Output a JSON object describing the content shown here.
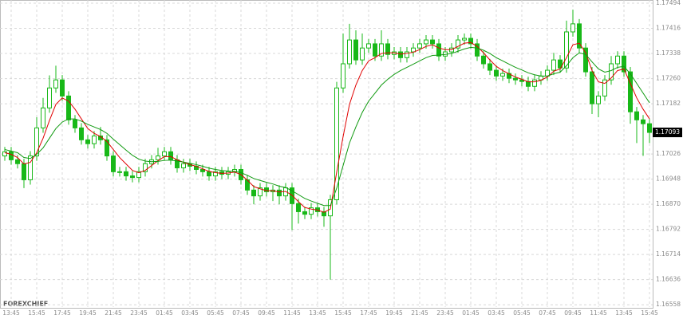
{
  "chart_data": {
    "type": "candlestick",
    "brand": "FOREXCHIEF",
    "ylim": [
      1.16551,
      1.17504
    ],
    "yticks": [
      1.17494,
      1.17416,
      1.17338,
      {
        "value": 1.1726,
        "label": "1.17260"
      },
      1.17182,
      1.17026,
      1.16948,
      {
        "value": 1.1687,
        "label": "1.16870"
      },
      1.16792,
      1.16714,
      1.16636,
      1.16558
    ],
    "current_price": 1.17093,
    "grid": true,
    "up_color": "#18b818",
    "down_color": "#18b818",
    "xticks": [
      {
        "value": 1,
        "label": "13:45"
      },
      {
        "value": 5,
        "label": "15:45"
      },
      {
        "value": 9,
        "label": "17:45"
      },
      {
        "value": 13,
        "label": "19:45"
      },
      {
        "value": 17,
        "label": "21:45"
      },
      {
        "value": 21,
        "label": "23:45"
      },
      {
        "value": 25,
        "label": "01:45"
      },
      {
        "value": 29,
        "label": "03:45"
      },
      {
        "value": 33,
        "label": "05:45"
      },
      {
        "value": 37,
        "label": "07:45"
      },
      {
        "value": 41,
        "label": "09:45"
      },
      {
        "value": 45,
        "label": "11:45"
      },
      {
        "value": 49,
        "label": "13:45"
      },
      {
        "value": 53,
        "label": "15:45"
      },
      {
        "value": 57,
        "label": "17:45"
      },
      {
        "value": 61,
        "label": "19:45"
      },
      {
        "value": 65,
        "label": "21:45"
      },
      {
        "value": 69,
        "label": "23:45"
      },
      {
        "value": 73,
        "label": "01:45"
      },
      {
        "value": 77,
        "label": "03:45"
      },
      {
        "value": 81,
        "label": "05:45"
      },
      {
        "value": 85,
        "label": "07:45"
      },
      {
        "value": 89,
        "label": "09:45"
      },
      {
        "value": 93,
        "label": "11:45"
      },
      {
        "value": 97,
        "label": "13:45"
      },
      {
        "value": 101,
        "label": "15:45"
      }
    ],
    "candles": [
      [
        1.1702,
        1.17048,
        1.17005,
        1.17033
      ],
      [
        1.17033,
        1.17048,
        1.16993,
        1.17008
      ],
      [
        1.17008,
        1.17023,
        1.16981,
        1.16996
      ],
      [
        1.16996,
        1.17011,
        1.1692,
        1.16946
      ],
      [
        1.16946,
        1.17035,
        1.16931,
        1.1702
      ],
      [
        1.1702,
        1.1714,
        1.17005,
        1.17107
      ],
      [
        1.17107,
        1.172,
        1.17092,
        1.17169
      ],
      [
        1.17169,
        1.1727,
        1.17154,
        1.17231
      ],
      [
        1.17231,
        1.173,
        1.17216,
        1.17256
      ],
      [
        1.17256,
        1.17271,
        1.17191,
        1.17206
      ],
      [
        1.17206,
        1.17221,
        1.17117,
        1.17132
      ],
      [
        1.17132,
        1.17147,
        1.17092,
        1.17107
      ],
      [
        1.17107,
        1.17122,
        1.17055,
        1.1707
      ],
      [
        1.1707,
        1.17085,
        1.17043,
        1.17058
      ],
      [
        1.17058,
        1.17097,
        1.17043,
        1.17082
      ],
      [
        1.17082,
        1.1711,
        1.17055,
        1.1707
      ],
      [
        1.1707,
        1.17085,
        1.17005,
        1.1702
      ],
      [
        1.1702,
        1.17035,
        1.16956,
        1.16971
      ],
      [
        1.16971,
        1.16986,
        1.16956,
        1.16971
      ],
      [
        1.16971,
        1.16986,
        1.16943,
        1.16958
      ],
      [
        1.16958,
        1.16973,
        1.16938,
        1.16953
      ],
      [
        1.16953,
        1.16986,
        1.16938,
        1.16971
      ],
      [
        1.16971,
        1.17011,
        1.16956,
        1.16996
      ],
      [
        1.16996,
        1.17023,
        1.16981,
        1.17008
      ],
      [
        1.17008,
        1.17045,
        1.16993,
        1.1702
      ],
      [
        1.1702,
        1.17048,
        1.17005,
        1.17033
      ],
      [
        1.17033,
        1.17048,
        1.16993,
        1.17008
      ],
      [
        1.17008,
        1.17023,
        1.16968,
        1.16983
      ],
      [
        1.16983,
        1.17011,
        1.16968,
        1.16996
      ],
      [
        1.16996,
        1.17011,
        1.16973,
        1.16988
      ],
      [
        1.16988,
        1.17003,
        1.16963,
        1.16978
      ],
      [
        1.16978,
        1.16993,
        1.16956,
        1.16971
      ],
      [
        1.16971,
        1.16986,
        1.16943,
        1.16958
      ],
      [
        1.16958,
        1.16986,
        1.16943,
        1.16971
      ],
      [
        1.16971,
        1.16986,
        1.16948,
        1.16963
      ],
      [
        1.16963,
        1.16986,
        1.16948,
        1.16971
      ],
      [
        1.16971,
        1.16993,
        1.16956,
        1.16978
      ],
      [
        1.16978,
        1.16993,
        1.16931,
        1.16946
      ],
      [
        1.16946,
        1.16961,
        1.16899,
        1.16914
      ],
      [
        1.16914,
        1.16929,
        1.1687,
        1.16896
      ],
      [
        1.16896,
        1.16936,
        1.16881,
        1.16921
      ],
      [
        1.16921,
        1.16936,
        1.16894,
        1.16909
      ],
      [
        1.16909,
        1.16929,
        1.1688,
        1.16914
      ],
      [
        1.16914,
        1.16929,
        1.1687,
        1.16896
      ],
      [
        1.16896,
        1.16936,
        1.16881,
        1.16921
      ],
      [
        1.16921,
        1.16936,
        1.1679,
        1.16872
      ],
      [
        1.16872,
        1.16887,
        1.1681,
        1.16847
      ],
      [
        1.16847,
        1.16862,
        1.16824,
        1.16839
      ],
      [
        1.16839,
        1.16874,
        1.16824,
        1.16859
      ],
      [
        1.16859,
        1.16874,
        1.16832,
        1.16847
      ],
      [
        1.16847,
        1.16862,
        1.168,
        1.16834
      ],
      [
        1.16834,
        1.16899,
        1.16636,
        1.16884
      ],
      [
        1.16884,
        1.1725,
        1.16869,
        1.17231
      ],
      [
        1.17231,
        1.174,
        1.17216,
        1.17306
      ],
      [
        1.17306,
        1.1743,
        1.17291,
        1.1738
      ],
      [
        1.1738,
        1.1741,
        1.17303,
        1.17318
      ],
      [
        1.17318,
        1.174,
        1.17303,
        1.17355
      ],
      [
        1.17355,
        1.17383,
        1.1734,
        1.17368
      ],
      [
        1.17368,
        1.17383,
        1.17315,
        1.1733
      ],
      [
        1.1733,
        1.1741,
        1.17315,
        1.17368
      ],
      [
        1.17368,
        1.17383,
        1.1732,
        1.17335
      ],
      [
        1.17335,
        1.17358,
        1.1732,
        1.17343
      ],
      [
        1.17343,
        1.17358,
        1.1731,
        1.17325
      ],
      [
        1.17325,
        1.17358,
        1.1731,
        1.17343
      ],
      [
        1.17343,
        1.1737,
        1.17328,
        1.17355
      ],
      [
        1.17355,
        1.17383,
        1.1734,
        1.17368
      ],
      [
        1.17368,
        1.17395,
        1.17353,
        1.1738
      ],
      [
        1.1738,
        1.17395,
        1.17353,
        1.17368
      ],
      [
        1.17368,
        1.17383,
        1.17315,
        1.1733
      ],
      [
        1.1733,
        1.17358,
        1.17315,
        1.17343
      ],
      [
        1.17343,
        1.1737,
        1.17328,
        1.17355
      ],
      [
        1.17355,
        1.17395,
        1.1734,
        1.1738
      ],
      [
        1.1738,
        1.174,
        1.17365,
        1.17385
      ],
      [
        1.17385,
        1.174,
        1.17353,
        1.17368
      ],
      [
        1.17368,
        1.17383,
        1.17315,
        1.1733
      ],
      [
        1.1733,
        1.17345,
        1.17291,
        1.17306
      ],
      [
        1.17306,
        1.17321,
        1.17271,
        1.17286
      ],
      [
        1.17286,
        1.17301,
        1.17253,
        1.17268
      ],
      [
        1.17268,
        1.17291,
        1.17253,
        1.17276
      ],
      [
        1.17276,
        1.17291,
        1.17246,
        1.17261
      ],
      [
        1.17261,
        1.17276,
        1.17241,
        1.17256
      ],
      [
        1.17256,
        1.17271,
        1.17236,
        1.17251
      ],
      [
        1.17251,
        1.17266,
        1.17221,
        1.17236
      ],
      [
        1.17236,
        1.17271,
        1.17221,
        1.17256
      ],
      [
        1.17256,
        1.17283,
        1.17241,
        1.17268
      ],
      [
        1.17268,
        1.17301,
        1.17253,
        1.17286
      ],
      [
        1.17286,
        1.1734,
        1.17271,
        1.17318
      ],
      [
        1.17318,
        1.17333,
        1.17278,
        1.17293
      ],
      [
        1.17293,
        1.1744,
        1.17278,
        1.17405
      ],
      [
        1.17405,
        1.17474,
        1.1739,
        1.1743
      ],
      [
        1.1743,
        1.17445,
        1.1734,
        1.17355
      ],
      [
        1.17355,
        1.1737,
        1.17266,
        1.17281
      ],
      [
        1.17281,
        1.17296,
        1.1715,
        1.17182
      ],
      [
        1.17182,
        1.17221,
        1.1714,
        1.17206
      ],
      [
        1.17206,
        1.17271,
        1.17191,
        1.17256
      ],
      [
        1.17256,
        1.1733,
        1.17241,
        1.17306
      ],
      [
        1.17306,
        1.17345,
        1.17291,
        1.1733
      ],
      [
        1.1733,
        1.17345,
        1.17266,
        1.17281
      ],
      [
        1.17281,
        1.17296,
        1.1712,
        1.17157
      ],
      [
        1.17157,
        1.17172,
        1.1706,
        1.17132
      ],
      [
        1.17132,
        1.17147,
        1.1702,
        1.1712
      ],
      [
        1.1712,
        1.17135,
        1.1706,
        1.17093
      ]
    ],
    "series": [
      {
        "color": "#e00000",
        "values": [
          1.1703,
          1.17025,
          1.17015,
          1.16995,
          1.17,
          1.1703,
          1.17075,
          1.1713,
          1.1718,
          1.172,
          1.1719,
          1.17165,
          1.17135,
          1.17105,
          1.1709,
          1.1708,
          1.17065,
          1.1704,
          1.17015,
          1.16995,
          1.16975,
          1.16968,
          1.16975,
          1.1699,
          1.17005,
          1.17018,
          1.17018,
          1.17008,
          1.17,
          1.16993,
          1.16988,
          1.1698,
          1.16972,
          1.16968,
          1.16966,
          1.16967,
          1.1697,
          1.16962,
          1.16945,
          1.16925,
          1.16918,
          1.16912,
          1.16912,
          1.16908,
          1.1691,
          1.16898,
          1.16878,
          1.1686,
          1.16855,
          1.16852,
          1.16845,
          1.16855,
          1.1697,
          1.1708,
          1.1718,
          1.1724,
          1.17285,
          1.17315,
          1.17325,
          1.17338,
          1.1734,
          1.1734,
          1.17336,
          1.17338,
          1.17342,
          1.1735,
          1.1736,
          1.17365,
          1.17355,
          1.1735,
          1.1735,
          1.1736,
          1.1737,
          1.17372,
          1.1736,
          1.1734,
          1.17318,
          1.17298,
          1.17285,
          1.17275,
          1.17265,
          1.17258,
          1.1725,
          1.1725,
          1.17255,
          1.17265,
          1.17283,
          1.1729,
          1.17325,
          1.17365,
          1.1737,
          1.1734,
          1.17285,
          1.1725,
          1.17245,
          1.17262,
          1.17285,
          1.1729,
          1.17245,
          1.172,
          1.17165,
          1.17135
        ]
      },
      {
        "color": "#109a10",
        "values": [
          1.1704,
          1.17035,
          1.1703,
          1.17015,
          1.17012,
          1.17025,
          1.17045,
          1.17075,
          1.17105,
          1.17125,
          1.17135,
          1.17135,
          1.17128,
          1.17118,
          1.1711,
          1.17102,
          1.1709,
          1.17072,
          1.17055,
          1.17038,
          1.17022,
          1.1701,
          1.17004,
          1.17002,
          1.17003,
          1.17006,
          1.17007,
          1.17004,
          1.17001,
          1.16997,
          1.16993,
          1.16988,
          1.16982,
          1.16978,
          1.16975,
          1.16973,
          1.16972,
          1.16968,
          1.1696,
          1.1695,
          1.16944,
          1.16938,
          1.16933,
          1.16926,
          1.16922,
          1.16912,
          1.169,
          1.16888,
          1.1688,
          1.16873,
          1.16866,
          1.16866,
          1.1692,
          1.1699,
          1.1706,
          1.1711,
          1.17155,
          1.1719,
          1.17215,
          1.1724,
          1.17258,
          1.17273,
          1.17285,
          1.17295,
          1.17305,
          1.17315,
          1.17325,
          1.17332,
          1.17333,
          1.17335,
          1.17338,
          1.17345,
          1.17352,
          1.17357,
          1.17355,
          1.17348,
          1.17338,
          1.17325,
          1.17315,
          1.17305,
          1.17295,
          1.17287,
          1.17278,
          1.17272,
          1.17268,
          1.17268,
          1.17275,
          1.1728,
          1.173,
          1.17325,
          1.1734,
          1.17335,
          1.17312,
          1.1729,
          1.1728,
          1.17285,
          1.17295,
          1.17298,
          1.17275,
          1.17245,
          1.17215,
          1.17185
        ]
      }
    ]
  }
}
